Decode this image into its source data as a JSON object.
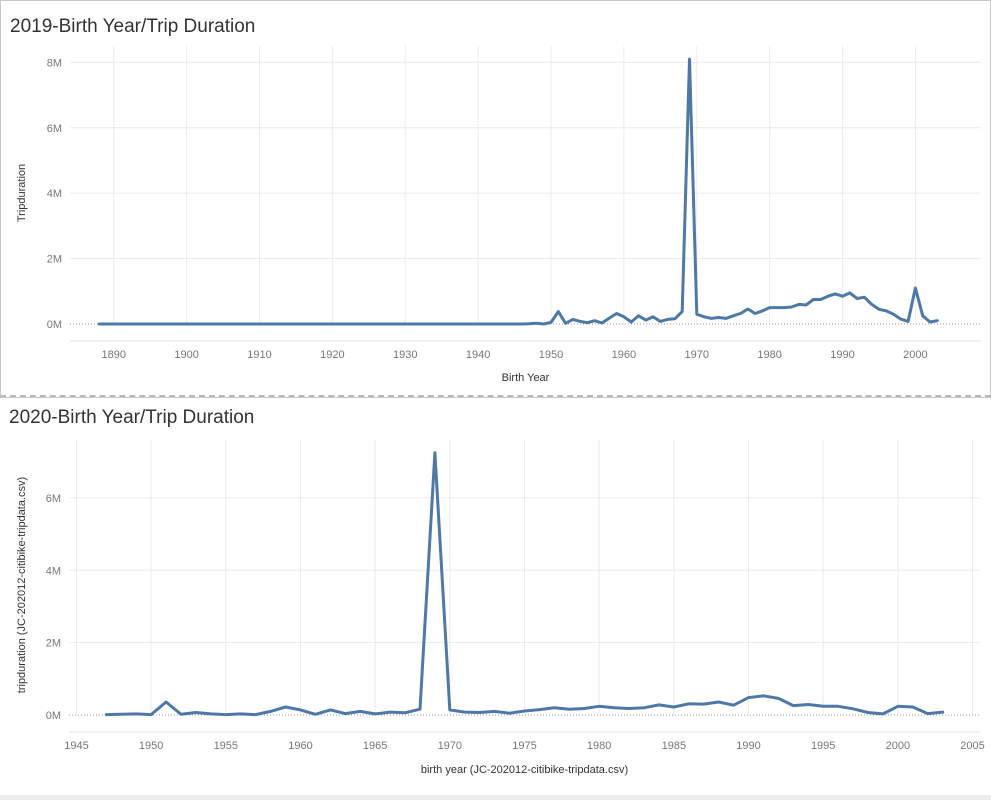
{
  "colors": {
    "line": "#4e79a7",
    "grid": "#ececec",
    "zero_line": "#9a9a9a",
    "divider": "#b8b8b8"
  },
  "chart_data": [
    {
      "type": "line",
      "title": "2019-Birth Year/Trip Duration",
      "xlabel": "Birth Year",
      "ylabel": "Tripduration",
      "xlim": [
        1884,
        2009
      ],
      "ylim": [
        0,
        8.5
      ],
      "x_ticks": [
        1890,
        1900,
        1910,
        1920,
        1930,
        1940,
        1950,
        1960,
        1970,
        1980,
        1990,
        2000
      ],
      "y_ticks": [
        0,
        2,
        4,
        6,
        8
      ],
      "y_tick_labels": [
        "0M",
        "2M",
        "4M",
        "6M",
        "8M"
      ],
      "grid": true,
      "series": [
        {
          "x": [
            1888,
            1890,
            1895,
            1900,
            1905,
            1910,
            1915,
            1920,
            1925,
            1930,
            1935,
            1940,
            1945,
            1946,
            1947,
            1948,
            1949,
            1950,
            1951,
            1952,
            1953,
            1954,
            1955,
            1956,
            1957,
            1958,
            1959,
            1960,
            1961,
            1962,
            1963,
            1964,
            1965,
            1966,
            1967,
            1968,
            1969,
            1970,
            1971,
            1972,
            1973,
            1974,
            1975,
            1976,
            1977,
            1978,
            1979,
            1980,
            1981,
            1982,
            1983,
            1984,
            1985,
            1986,
            1987,
            1988,
            1989,
            1990,
            1991,
            1992,
            1993,
            1994,
            1995,
            1996,
            1997,
            1998,
            1999,
            2000,
            2001,
            2002,
            2003
          ],
          "values": [
            0,
            0,
            0,
            0,
            0,
            0,
            0,
            0,
            0,
            0,
            0,
            0,
            0,
            0,
            0.01,
            0.02,
            0,
            0.05,
            0.38,
            0.02,
            0.14,
            0.08,
            0.04,
            0.1,
            0.03,
            0.18,
            0.32,
            0.22,
            0.06,
            0.25,
            0.12,
            0.22,
            0.08,
            0.14,
            0.16,
            0.38,
            8.1,
            0.3,
            0.22,
            0.17,
            0.2,
            0.17,
            0.25,
            0.32,
            0.46,
            0.32,
            0.4,
            0.5,
            0.5,
            0.5,
            0.52,
            0.6,
            0.58,
            0.75,
            0.75,
            0.85,
            0.92,
            0.85,
            0.95,
            0.78,
            0.82,
            0.6,
            0.45,
            0.4,
            0.3,
            0.15,
            0.08,
            1.1,
            0.25,
            0.06,
            0.1
          ]
        }
      ]
    },
    {
      "type": "line",
      "title": "2020-Birth Year/Trip Duration",
      "xlabel": "birth year (JC-202012-citibike-tripdata.csv)",
      "ylabel": "tripduration (JC-202012-citibike-tripdata.csv)",
      "xlim": [
        1944.5,
        2005.5
      ],
      "ylim": [
        0,
        7.6
      ],
      "x_ticks": [
        1945,
        1950,
        1955,
        1960,
        1965,
        1970,
        1975,
        1980,
        1985,
        1990,
        1995,
        2000,
        2005
      ],
      "y_ticks": [
        0,
        2,
        4,
        6
      ],
      "y_tick_labels": [
        "0M",
        "2M",
        "4M",
        "6M"
      ],
      "grid": true,
      "series": [
        {
          "x": [
            1947,
            1948,
            1949,
            1950,
            1951,
            1952,
            1953,
            1954,
            1955,
            1956,
            1957,
            1958,
            1959,
            1960,
            1961,
            1962,
            1963,
            1964,
            1965,
            1966,
            1967,
            1968,
            1969,
            1970,
            1971,
            1972,
            1973,
            1974,
            1975,
            1976,
            1977,
            1978,
            1979,
            1980,
            1981,
            1982,
            1983,
            1984,
            1985,
            1986,
            1987,
            1988,
            1989,
            1990,
            1991,
            1992,
            1993,
            1994,
            1995,
            1996,
            1997,
            1998,
            1999,
            2000,
            2001,
            2002,
            2003
          ],
          "values": [
            0.01,
            0.02,
            0.03,
            0.01,
            0.36,
            0.02,
            0.07,
            0.03,
            0.01,
            0.03,
            0.01,
            0.1,
            0.22,
            0.14,
            0.02,
            0.14,
            0.04,
            0.1,
            0.03,
            0.08,
            0.06,
            0.16,
            7.25,
            0.14,
            0.08,
            0.07,
            0.1,
            0.05,
            0.11,
            0.15,
            0.2,
            0.16,
            0.18,
            0.24,
            0.2,
            0.18,
            0.2,
            0.28,
            0.22,
            0.31,
            0.3,
            0.36,
            0.27,
            0.48,
            0.53,
            0.46,
            0.26,
            0.29,
            0.24,
            0.24,
            0.17,
            0.07,
            0.03,
            0.24,
            0.22,
            0.04,
            0.08
          ]
        }
      ]
    }
  ]
}
